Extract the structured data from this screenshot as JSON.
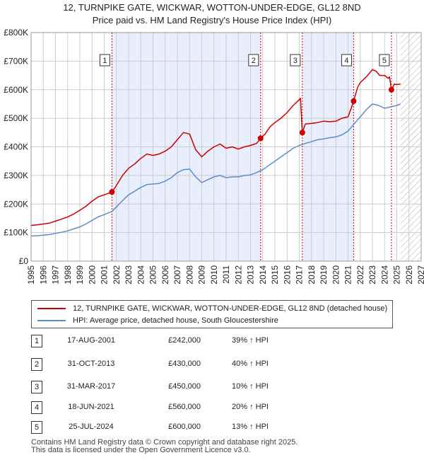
{
  "title_line1": "12, TURNPIKE GATE, WICKWAR, WOTTON-UNDER-EDGE, GL12 8ND",
  "title_line2": "Price paid vs. HM Land Registry's House Price Index (HPI)",
  "legend": {
    "property_label": "12, TURNPIKE GATE, WICKWAR, WOTTON-UNDER-EDGE, GL12 8ND (detached house)",
    "hpi_label": "HPI: Average price, detached house, South Gloucestershire"
  },
  "colors": {
    "property": "#cc0000",
    "hpi": "#5b8dc8",
    "shade": "#e8eefb",
    "grid": "#cccccc"
  },
  "sales": [
    {
      "num": "1",
      "date": "17-AUG-2001",
      "price": "£242,000",
      "hpi": "39% ↑ HPI"
    },
    {
      "num": "2",
      "date": "31-OCT-2013",
      "price": "£430,000",
      "hpi": "40% ↑ HPI"
    },
    {
      "num": "3",
      "date": "31-MAR-2017",
      "price": "£450,000",
      "hpi": "10% ↑ HPI"
    },
    {
      "num": "4",
      "date": "18-JUN-2021",
      "price": "£560,000",
      "hpi": "20% ↑ HPI"
    },
    {
      "num": "5",
      "date": "25-JUL-2024",
      "price": "£600,000",
      "hpi": "13% ↑ HPI"
    }
  ],
  "footer_line1": "Contains HM Land Registry data © Crown copyright and database right 2025.",
  "footer_line2": "This data is licensed under the Open Government Licence v3.0.",
  "chart_data": {
    "type": "line",
    "title": "Price paid vs. HM Land Registry's House Price Index (HPI)",
    "xlim": [
      1995,
      2027
    ],
    "ylim": [
      0,
      800000
    ],
    "x_ticks": [
      1995,
      1996,
      1997,
      1998,
      1999,
      2000,
      2001,
      2002,
      2003,
      2004,
      2005,
      2006,
      2007,
      2008,
      2009,
      2010,
      2011,
      2012,
      2013,
      2014,
      2015,
      2016,
      2017,
      2018,
      2019,
      2020,
      2021,
      2022,
      2023,
      2024,
      2025,
      2026,
      2027
    ],
    "y_ticks": [
      0,
      100000,
      200000,
      300000,
      400000,
      500000,
      600000,
      700000,
      800000
    ],
    "y_tick_labels": [
      "£0",
      "£100K",
      "£200K",
      "£300K",
      "£400K",
      "£500K",
      "£600K",
      "£700K",
      "£800K"
    ],
    "sale_points": [
      {
        "label": "1",
        "x": 2001.63,
        "y": 242000
      },
      {
        "label": "2",
        "x": 2013.83,
        "y": 430000
      },
      {
        "label": "3",
        "x": 2017.25,
        "y": 450000
      },
      {
        "label": "4",
        "x": 2021.46,
        "y": 560000
      },
      {
        "label": "5",
        "x": 2024.56,
        "y": 600000
      }
    ],
    "shaded_regions": [
      [
        2001.63,
        2013.83
      ],
      [
        2017.25,
        2021.46
      ]
    ],
    "forecast_from": 2025.3,
    "series": [
      {
        "name": "12, TURNPIKE GATE, WICKWAR, WOTTON-UNDER-EDGE, GL12 8ND (detached house)",
        "x": [
          1995.0,
          1995.5,
          1996.0,
          1996.5,
          1997.0,
          1997.5,
          1998.0,
          1998.5,
          1999.0,
          1999.5,
          2000.0,
          2000.5,
          2001.0,
          2001.63,
          2002.0,
          2002.5,
          2003.0,
          2003.5,
          2004.0,
          2004.5,
          2005.0,
          2005.5,
          2006.0,
          2006.5,
          2007.0,
          2007.5,
          2008.0,
          2008.5,
          2009.0,
          2009.5,
          2010.0,
          2010.5,
          2011.0,
          2011.5,
          2012.0,
          2012.5,
          2013.0,
          2013.5,
          2013.83,
          2014.2,
          2014.6,
          2015.0,
          2015.5,
          2016.0,
          2016.5,
          2017.0,
          2017.1,
          2017.25,
          2017.5,
          2018.0,
          2018.5,
          2019.0,
          2019.5,
          2020.0,
          2020.5,
          2021.0,
          2021.3,
          2021.46,
          2021.8,
          2022.0,
          2022.5,
          2023.0,
          2023.3,
          2023.6,
          2024.0,
          2024.3,
          2024.4,
          2024.56,
          2024.8,
          2025.0,
          2025.3
        ],
        "y": [
          125000,
          127000,
          130000,
          133000,
          140000,
          147000,
          155000,
          165000,
          178000,
          192000,
          210000,
          225000,
          232000,
          242000,
          265000,
          300000,
          325000,
          340000,
          360000,
          375000,
          370000,
          375000,
          385000,
          400000,
          425000,
          450000,
          445000,
          390000,
          365000,
          385000,
          400000,
          410000,
          395000,
          400000,
          392000,
          400000,
          405000,
          412000,
          430000,
          445000,
          470000,
          485000,
          500000,
          520000,
          545000,
          565000,
          570000,
          450000,
          480000,
          482000,
          485000,
          490000,
          488000,
          490000,
          500000,
          505000,
          540000,
          560000,
          610000,
          625000,
          645000,
          670000,
          665000,
          650000,
          650000,
          640000,
          645000,
          600000,
          620000,
          618000,
          620000
        ]
      },
      {
        "name": "HPI: Average price, detached house, South Gloucestershire",
        "x": [
          1995.0,
          1995.5,
          1996.0,
          1996.5,
          1997.0,
          1997.5,
          1998.0,
          1998.5,
          1999.0,
          1999.5,
          2000.0,
          2000.5,
          2001.0,
          2001.63,
          2002.0,
          2002.5,
          2003.0,
          2003.5,
          2004.0,
          2004.5,
          2005.0,
          2005.5,
          2006.0,
          2006.5,
          2007.0,
          2007.5,
          2008.0,
          2008.5,
          2009.0,
          2009.5,
          2010.0,
          2010.5,
          2011.0,
          2011.5,
          2012.0,
          2012.5,
          2013.0,
          2013.5,
          2014.0,
          2014.5,
          2015.0,
          2015.5,
          2016.0,
          2016.5,
          2017.0,
          2017.5,
          2018.0,
          2018.5,
          2019.0,
          2019.5,
          2020.0,
          2020.5,
          2021.0,
          2021.5,
          2022.0,
          2022.5,
          2023.0,
          2023.5,
          2024.0,
          2024.5,
          2025.0,
          2025.3
        ],
        "y": [
          88000,
          89000,
          91000,
          93000,
          97000,
          101000,
          106000,
          113000,
          120000,
          130000,
          143000,
          155000,
          163000,
          174000,
          190000,
          212000,
          232000,
          245000,
          258000,
          268000,
          270000,
          272000,
          280000,
          292000,
          310000,
          320000,
          322000,
          295000,
          275000,
          285000,
          295000,
          300000,
          292000,
          295000,
          295000,
          300000,
          302000,
          310000,
          320000,
          335000,
          350000,
          365000,
          380000,
          395000,
          405000,
          412000,
          418000,
          425000,
          428000,
          432000,
          435000,
          442000,
          455000,
          480000,
          505000,
          530000,
          550000,
          545000,
          535000,
          540000,
          545000,
          550000
        ]
      }
    ]
  }
}
